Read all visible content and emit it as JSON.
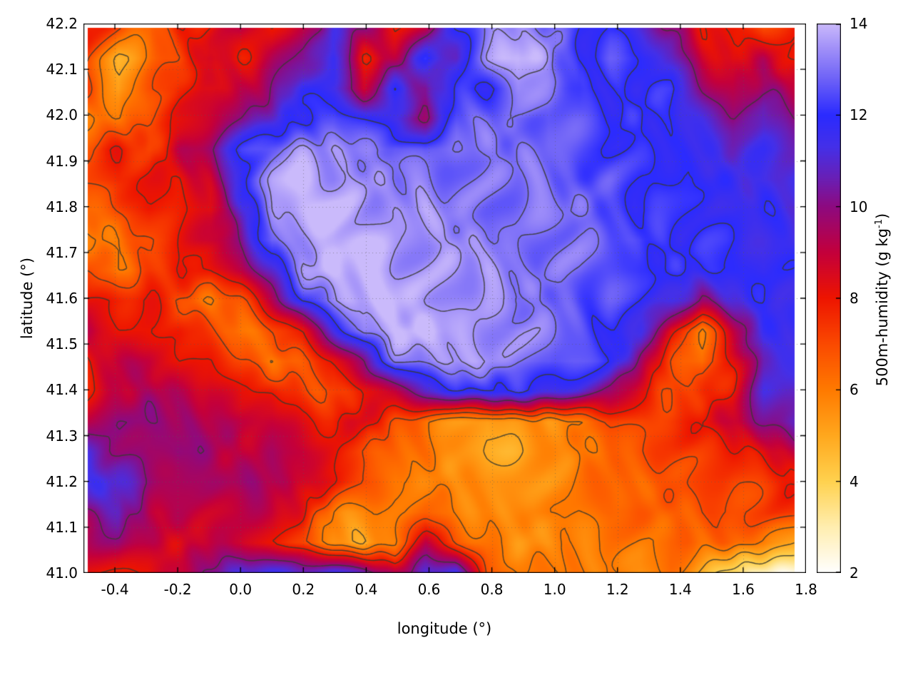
{
  "figure": {
    "xlabel": "longitude (°)",
    "ylabel": "latitude (°)",
    "colorbar_label_prefix": "500m-humidity (g kg",
    "colorbar_label_sup": "-1",
    "colorbar_label_suffix": ")"
  },
  "chart_data": {
    "type": "heatmap",
    "title": "",
    "xlabel": "longitude (°)",
    "ylabel": "latitude (°)",
    "colorbar_label": "500m-humidity (g kg^-1)",
    "xlim": [
      -0.5,
      1.8
    ],
    "ylim": [
      41.0,
      42.2
    ],
    "clim": [
      2,
      14
    ],
    "x_ticks": [
      "-0.4",
      "-0.2",
      "0.0",
      "0.2",
      "0.4",
      "0.6",
      "0.8",
      "1.0",
      "1.2",
      "1.4",
      "1.6",
      "1.8"
    ],
    "y_ticks": [
      "41.0",
      "41.1",
      "41.2",
      "41.3",
      "41.4",
      "41.5",
      "41.6",
      "41.7",
      "41.8",
      "41.9",
      "42.0",
      "42.1",
      "42.2"
    ],
    "cb_ticks": [
      "2",
      "4",
      "6",
      "8",
      "10",
      "12",
      "14"
    ],
    "grid_lines": true,
    "contour_color": "#3a3a30",
    "contour_levels": [
      4,
      5,
      6,
      7,
      8,
      10,
      12,
      13,
      13.5
    ],
    "palette_stops": [
      [
        2,
        "#ffffff"
      ],
      [
        3,
        "#ffeeb0"
      ],
      [
        4,
        "#ffd24f"
      ],
      [
        5,
        "#ffa81e"
      ],
      [
        6,
        "#ff7a00"
      ],
      [
        7,
        "#fb4a00"
      ],
      [
        8,
        "#ee1500"
      ],
      [
        9,
        "#c4003c"
      ],
      [
        10,
        "#8e0a80"
      ],
      [
        10.6,
        "#6b1fb4"
      ],
      [
        11.3,
        "#4530e8"
      ],
      [
        12,
        "#2b2bff"
      ],
      [
        12.8,
        "#6f63f7"
      ],
      [
        13.5,
        "#a493f9"
      ],
      [
        14,
        "#cabafb"
      ]
    ],
    "grid": {
      "note": "humidity field g/kg, rows top-to-bottom (lat y1 -> y0), cols left-to-right (lon x0 -> x1)",
      "x0": -0.487,
      "x1": 1.763,
      "y0": 41.0,
      "y1": 42.19,
      "nx": 24,
      "ny": 19,
      "values": [
        [
          8,
          7,
          6,
          8,
          8,
          9,
          8,
          9,
          11,
          10,
          8,
          9,
          12,
          13,
          13.5,
          13,
          12,
          12,
          11,
          10,
          8,
          8,
          7,
          8
        ],
        [
          7,
          5,
          6,
          7,
          9,
          8,
          9,
          10,
          12,
          8,
          9,
          12,
          11,
          13.5,
          14,
          13.5,
          12,
          12.5,
          12,
          11,
          9,
          8,
          9,
          8
        ],
        [
          7,
          5,
          7,
          8,
          8,
          9,
          10,
          12,
          11,
          9,
          12,
          10,
          12,
          12,
          13.5,
          13,
          12,
          12,
          12,
          12,
          10,
          9,
          10,
          9
        ],
        [
          6,
          6,
          7,
          8,
          9,
          10,
          11,
          12,
          12.5,
          12,
          11,
          10,
          12.5,
          13,
          12.5,
          13,
          12.5,
          12,
          12,
          12,
          11,
          10,
          11,
          10
        ],
        [
          7,
          8,
          7,
          9,
          10,
          12,
          13,
          13.5,
          13.5,
          13,
          13,
          12.5,
          13,
          13,
          13,
          13,
          12.5,
          12,
          12,
          12,
          11.5,
          11,
          11.5,
          11
        ],
        [
          7,
          8,
          8,
          8,
          9,
          12,
          13.5,
          14,
          13.5,
          13.5,
          13,
          13,
          13,
          13,
          13,
          13,
          12.5,
          12.5,
          12,
          12,
          12,
          11.5,
          11,
          11.5
        ],
        [
          6,
          7,
          8,
          8,
          8,
          11,
          13.5,
          14,
          14,
          13.5,
          13.5,
          13.5,
          13,
          13,
          13,
          13,
          13,
          12.5,
          12,
          12,
          12,
          11.5,
          12,
          11
        ],
        [
          6,
          6,
          7,
          8,
          9,
          10,
          13,
          13.5,
          14,
          14,
          13.5,
          13.5,
          13.5,
          13,
          13,
          13,
          13,
          12.5,
          12.5,
          12,
          12,
          12,
          11.5,
          11.5
        ],
        [
          7,
          6,
          7,
          8,
          8,
          9,
          11,
          13.5,
          14,
          14,
          13.5,
          13.5,
          13.5,
          13.5,
          13,
          13,
          13,
          12.5,
          12,
          12,
          12,
          12,
          11.5,
          12
        ],
        [
          8,
          8,
          8,
          7,
          6,
          7,
          9,
          12,
          13.5,
          14,
          14,
          13.5,
          13.5,
          13.5,
          13,
          13,
          12.5,
          12.5,
          12,
          11.5,
          10,
          11,
          12,
          11.5
        ],
        [
          9,
          8,
          8,
          8,
          7,
          6,
          7,
          8,
          11,
          13.5,
          14,
          14,
          13.5,
          13.5,
          13.5,
          13,
          12.5,
          12,
          11.5,
          8,
          6,
          9,
          11.5,
          11.5
        ],
        [
          8,
          9,
          9,
          8,
          8,
          7,
          6,
          7,
          8,
          10,
          13,
          13.5,
          13.5,
          13.5,
          13,
          13,
          12.5,
          12,
          10,
          7,
          6,
          8,
          11,
          11.5
        ],
        [
          8,
          9,
          9.5,
          9,
          9,
          8,
          8,
          7,
          7,
          8,
          9,
          11,
          12,
          12,
          12,
          11.5,
          11,
          10,
          8,
          7,
          7.5,
          8,
          11,
          11
        ],
        [
          9,
          10,
          10,
          9.5,
          9.5,
          9,
          9,
          8,
          8,
          8.5,
          7,
          6,
          5.5,
          5,
          5.5,
          5.5,
          6,
          7,
          7,
          7.5,
          8,
          9,
          10,
          11
        ],
        [
          11,
          10,
          9.5,
          10,
          9.5,
          9,
          9.5,
          9,
          8,
          7,
          6.5,
          6,
          5.5,
          5,
          5,
          5.5,
          6,
          6.5,
          7,
          7,
          7.5,
          8,
          8,
          9
        ],
        [
          11.5,
          11,
          10,
          9.5,
          9.5,
          9.5,
          9.5,
          9,
          8,
          7,
          6,
          6,
          5.5,
          5.5,
          5.5,
          5.5,
          6,
          6.5,
          6.5,
          7,
          7,
          7,
          7.5,
          8
        ],
        [
          10,
          11,
          9,
          9,
          9,
          9,
          9,
          8,
          6,
          5.5,
          6,
          6.5,
          6,
          5.5,
          5.5,
          6,
          6,
          6.5,
          6.5,
          6.5,
          7,
          7,
          7,
          7.5
        ],
        [
          9,
          10,
          9,
          8.5,
          9,
          9,
          8,
          7,
          5.5,
          5,
          6,
          9,
          7,
          6,
          5.5,
          5.5,
          6,
          6,
          6,
          6.5,
          6.5,
          6.5,
          6,
          5
        ],
        [
          8,
          8,
          8,
          9,
          10,
          11.5,
          11.5,
          11,
          11.5,
          11,
          9,
          11,
          11.5,
          7,
          6,
          6,
          6,
          6,
          5.5,
          6,
          5,
          3.5,
          2.5,
          2
        ]
      ]
    }
  }
}
